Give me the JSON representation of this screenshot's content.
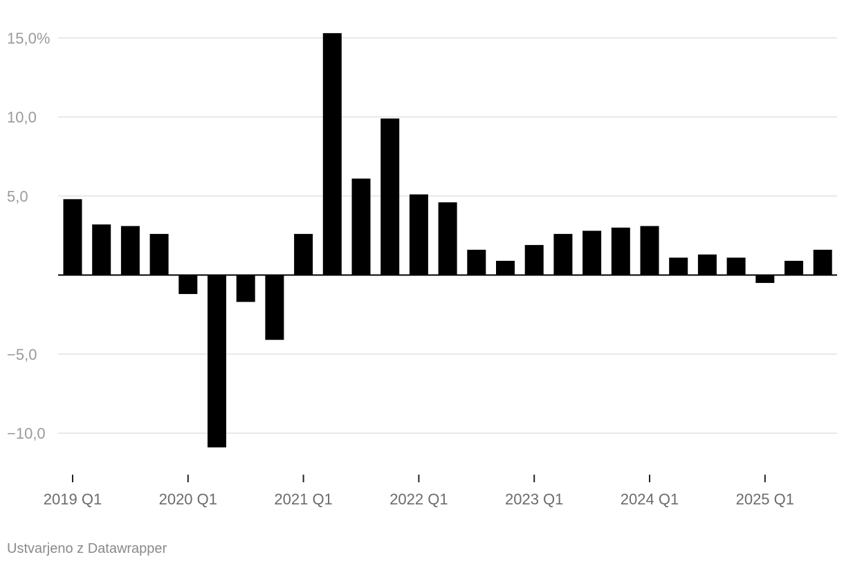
{
  "chart_data": {
    "type": "bar",
    "title": "",
    "xlabel": "",
    "ylabel": "",
    "categories": [
      "2019 Q1",
      "2019 Q2",
      "2019 Q3",
      "2019 Q4",
      "2020 Q1",
      "2020 Q2",
      "2020 Q3",
      "2020 Q4",
      "2021 Q1",
      "2021 Q2",
      "2021 Q3",
      "2021 Q4",
      "2022 Q1",
      "2022 Q2",
      "2022 Q3",
      "2022 Q4",
      "2023 Q1",
      "2023 Q2",
      "2023 Q3",
      "2023 Q4",
      "2024 Q1",
      "2024 Q2",
      "2024 Q3",
      "2024 Q4",
      "2025 Q1",
      "2025 Q2",
      "2025 Q3"
    ],
    "values": [
      4.8,
      3.2,
      3.1,
      2.6,
      -1.2,
      -10.9,
      -1.7,
      -4.1,
      2.6,
      15.3,
      6.1,
      9.9,
      5.1,
      4.6,
      1.6,
      0.9,
      1.9,
      2.6,
      2.8,
      3.0,
      3.1,
      1.1,
      1.3,
      1.1,
      -0.5,
      0.9,
      1.6
    ],
    "ylim": [
      -12.2,
      15.8
    ],
    "y_ticks": [
      {
        "value": 15,
        "label": "15,0%"
      },
      {
        "value": 10,
        "label": "10,0"
      },
      {
        "value": 5,
        "label": "5,0"
      },
      {
        "value": -5,
        "label": "−5,0"
      },
      {
        "value": -10,
        "label": "−10,0"
      }
    ],
    "x_tick_labels": [
      "2019 Q1",
      "2020 Q1",
      "2021 Q1",
      "2022 Q1",
      "2023 Q1",
      "2024 Q1",
      "2025 Q1"
    ],
    "grid": true,
    "legend": "none",
    "colors": {
      "bar": "#000000",
      "grid": "#e2e2e2",
      "zero_line": "#000000",
      "tick": "#222222"
    }
  },
  "footer": {
    "credit": "Ustvarjeno z Datawrapper"
  }
}
